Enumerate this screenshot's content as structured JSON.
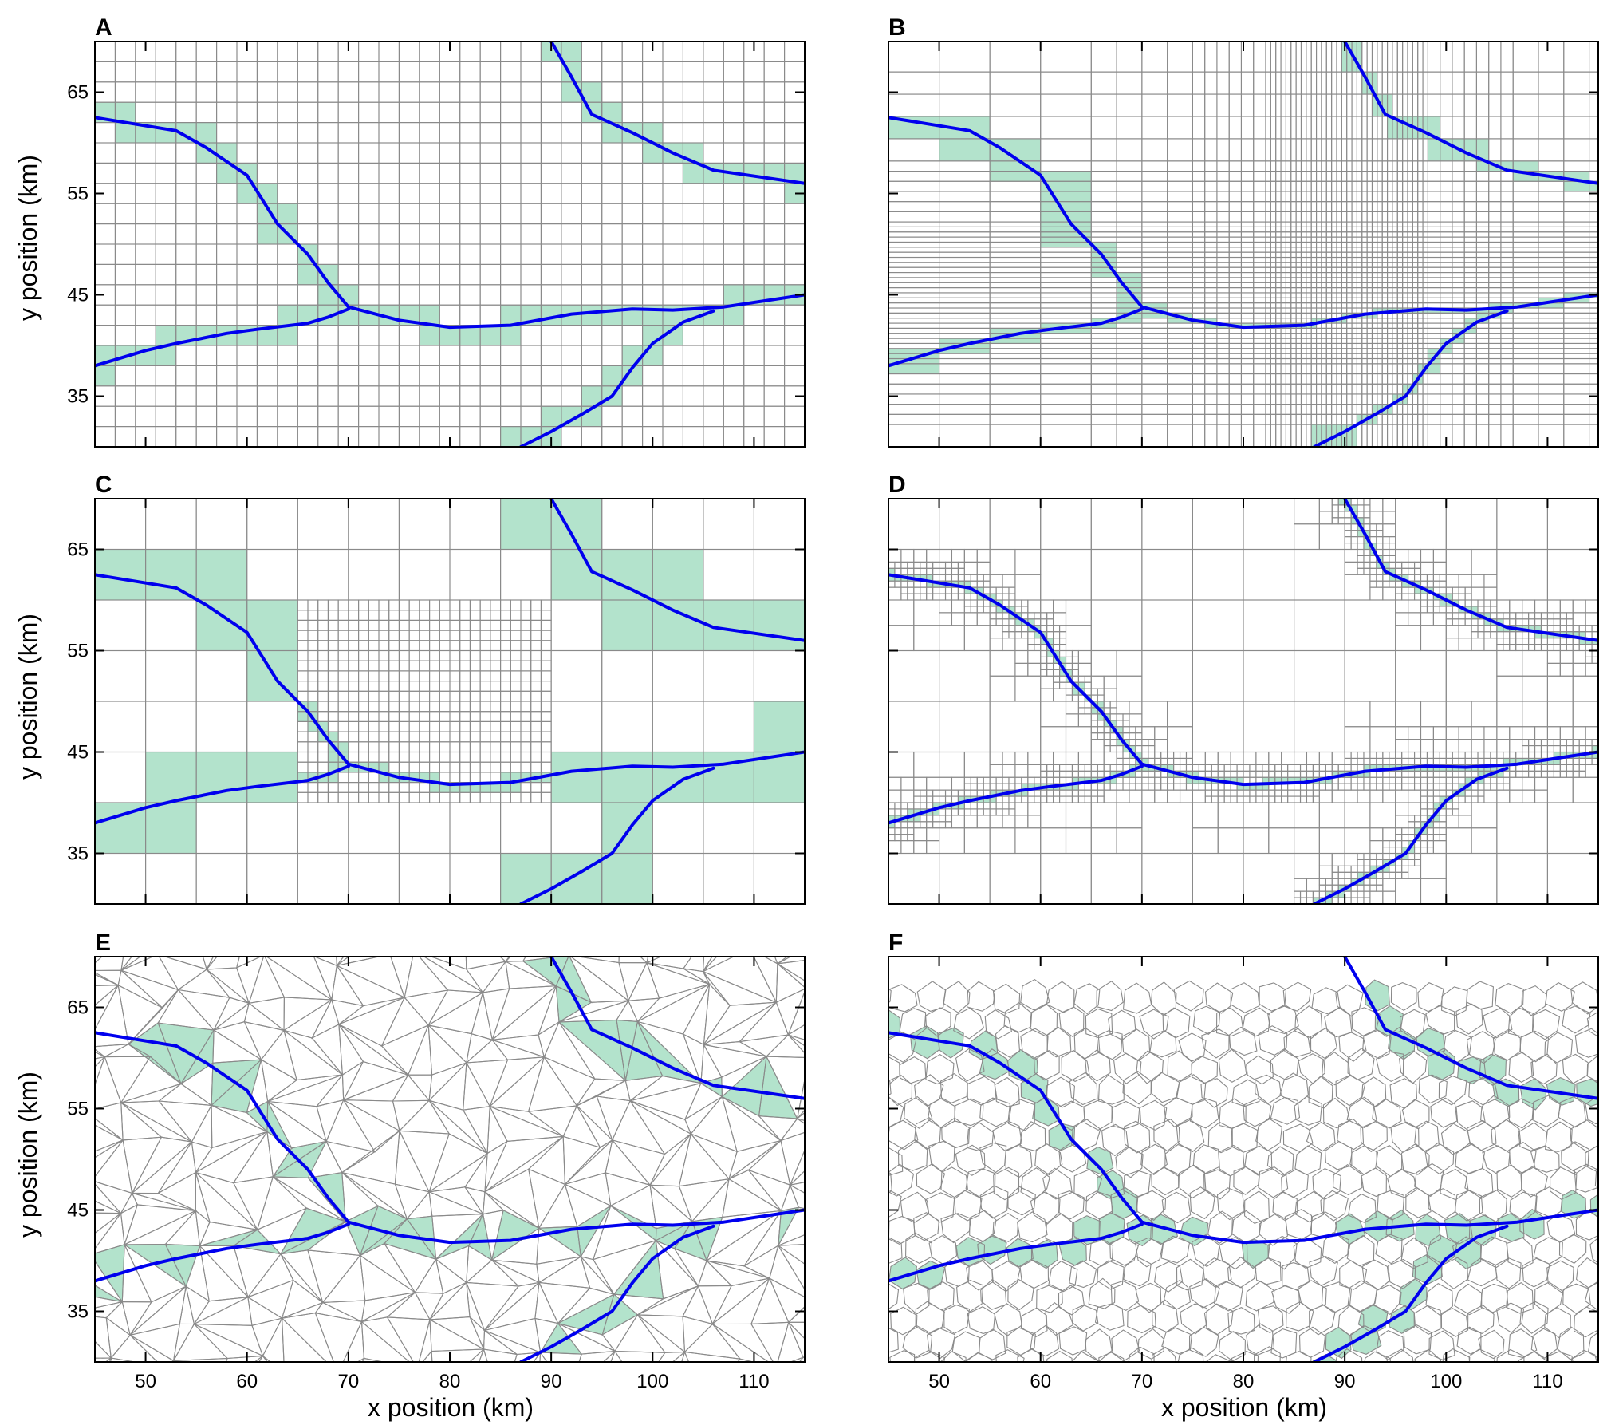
{
  "figure": {
    "x_label": "x position (km)",
    "y_label": "y position (km)",
    "x_range": [
      45,
      115
    ],
    "y_range": [
      30,
      70
    ],
    "x_ticks": [
      50,
      60,
      70,
      80,
      90,
      100,
      110
    ],
    "y_ticks": [
      35,
      45,
      55,
      65
    ]
  },
  "colors": {
    "fault": "#0000ee",
    "highlight": "#b3e3cc",
    "grid": "#8a8a8a",
    "frame": "#000000"
  },
  "panels": [
    {
      "id": "A",
      "letter": "A",
      "mesh": "uniform-grid"
    },
    {
      "id": "B",
      "letter": "B",
      "mesh": "graded-grid"
    },
    {
      "id": "C",
      "letter": "C",
      "mesh": "nested-grid"
    },
    {
      "id": "D",
      "letter": "D",
      "mesh": "adaptive-quadtree"
    },
    {
      "id": "E",
      "letter": "E",
      "mesh": "triangular"
    },
    {
      "id": "F",
      "letter": "F",
      "mesh": "voronoi"
    }
  ],
  "faults": [
    {
      "name": "",
      "points": [
        [
          45,
          38
        ],
        [
          50,
          39.5
        ],
        [
          53,
          40.2
        ],
        [
          58,
          41.2
        ],
        [
          61,
          41.6
        ],
        [
          66,
          42.2
        ],
        [
          68,
          42.8
        ],
        [
          70,
          43.6
        ]
      ]
    },
    {
      "name": "",
      "points": [
        [
          45,
          62.5
        ],
        [
          53,
          61.2
        ],
        [
          56,
          59.5
        ],
        [
          60,
          56.8
        ],
        [
          63,
          52
        ],
        [
          66,
          49
        ],
        [
          68,
          46.2
        ],
        [
          70,
          43.8
        ],
        [
          75,
          42.5
        ],
        [
          80,
          41.8
        ],
        [
          86,
          42
        ],
        [
          92,
          43.1
        ],
        [
          98,
          43.6
        ],
        [
          102,
          43.5
        ],
        [
          107,
          43.8
        ],
        [
          115,
          45
        ]
      ]
    },
    {
      "name": "",
      "points": [
        [
          90,
          70
        ],
        [
          92,
          66.5
        ],
        [
          94,
          62.8
        ],
        [
          98,
          61
        ],
        [
          102,
          59
        ],
        [
          106,
          57.3
        ],
        [
          115,
          56
        ]
      ]
    },
    {
      "name": "",
      "points": [
        [
          87,
          30
        ],
        [
          90,
          31.5
        ],
        [
          93,
          33.2
        ],
        [
          96,
          35
        ],
        [
          98,
          37.8
        ],
        [
          100,
          40.2
        ],
        [
          103,
          42.3
        ],
        [
          106,
          43.4
        ]
      ]
    }
  ]
}
